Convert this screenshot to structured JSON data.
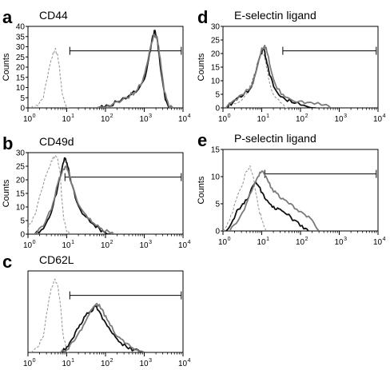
{
  "figure": {
    "background": "#ffffff",
    "colors": {
      "solid_dark": "#111111",
      "solid_gray": "#7a7a7a",
      "dashed_control": "#9a9a9a"
    }
  },
  "chart_data": [
    {
      "id": "a",
      "panel_letter": "a",
      "title": "CD44",
      "type": "line",
      "xscale": "log",
      "xlim": [
        1,
        10000
      ],
      "xticks": [
        {
          "base": "10",
          "exp": "0"
        },
        {
          "base": "10",
          "exp": "1"
        },
        {
          "base": "10",
          "exp": "2"
        },
        {
          "base": "10",
          "exp": "3"
        },
        {
          "base": "10",
          "exp": "4"
        }
      ],
      "ylabel": "Counts",
      "ylim": [
        0,
        40
      ],
      "yticks": [
        "0",
        "5",
        "10",
        "15",
        "20",
        "25",
        "30",
        "35",
        "40"
      ],
      "gate": [
        12,
        9000
      ],
      "series": [
        {
          "style": "dashed",
          "color": "#9a9a9a",
          "points": [
            [
              1.2,
              0
            ],
            [
              1.8,
              1
            ],
            [
              2.5,
              5
            ],
            [
              3.2,
              15
            ],
            [
              4,
              24
            ],
            [
              5,
              29
            ],
            [
              5.6,
              27
            ],
            [
              6.5,
              20
            ],
            [
              7.5,
              8
            ],
            [
              9,
              2
            ],
            [
              11,
              0
            ]
          ]
        },
        {
          "style": "solid",
          "color": "#111111",
          "points": [
            [
              70,
              0
            ],
            [
              120,
              1
            ],
            [
              200,
              3
            ],
            [
              400,
              6
            ],
            [
              700,
              9
            ],
            [
              1000,
              14
            ],
            [
              1300,
              24
            ],
            [
              1600,
              34
            ],
            [
              1900,
              38
            ],
            [
              2200,
              33
            ],
            [
              2700,
              18
            ],
            [
              3500,
              4
            ],
            [
              4500,
              0
            ]
          ]
        },
        {
          "style": "solid",
          "color": "#7a7a7a",
          "points": [
            [
              60,
              0
            ],
            [
              110,
              1
            ],
            [
              200,
              3
            ],
            [
              350,
              5
            ],
            [
              600,
              8
            ],
            [
              900,
              13
            ],
            [
              1200,
              22
            ],
            [
              1500,
              31
            ],
            [
              1800,
              36
            ],
            [
              2100,
              35
            ],
            [
              2600,
              24
            ],
            [
              3300,
              8
            ],
            [
              4300,
              1
            ],
            [
              5500,
              0
            ]
          ]
        }
      ]
    },
    {
      "id": "b",
      "panel_letter": "b",
      "title": "CD49d",
      "type": "line",
      "xscale": "log",
      "xlim": [
        1,
        10000
      ],
      "xticks": [
        {
          "base": "10",
          "exp": "0"
        },
        {
          "base": "10",
          "exp": "1"
        },
        {
          "base": "10",
          "exp": "2"
        },
        {
          "base": "10",
          "exp": "3"
        },
        {
          "base": "10",
          "exp": "4"
        }
      ],
      "ylabel": "Counts",
      "ylim": [
        0,
        30
      ],
      "yticks": [
        "0",
        "5",
        "10",
        "15",
        "20",
        "25",
        "30"
      ],
      "gate": [
        9,
        9000
      ],
      "series": [
        {
          "style": "dashed",
          "color": "#9a9a9a",
          "points": [
            [
              1,
              2
            ],
            [
              1.5,
              7
            ],
            [
              2,
              14
            ],
            [
              3,
              22
            ],
            [
              4,
              27
            ],
            [
              5,
              29
            ],
            [
              5.8,
              28
            ],
            [
              6.8,
              22
            ],
            [
              7.5,
              13
            ],
            [
              8.5,
              5
            ],
            [
              10,
              1
            ],
            [
              12,
              0
            ]
          ]
        },
        {
          "style": "solid",
          "color": "#111111",
          "points": [
            [
              1.5,
              0
            ],
            [
              2.5,
              2
            ],
            [
              4,
              8
            ],
            [
              6,
              18
            ],
            [
              8,
              26
            ],
            [
              9,
              28
            ],
            [
              10.5,
              25
            ],
            [
              13,
              19
            ],
            [
              18,
              12
            ],
            [
              28,
              7
            ],
            [
              45,
              4
            ],
            [
              70,
              2
            ],
            [
              100,
              0.5
            ],
            [
              140,
              0
            ]
          ]
        },
        {
          "style": "solid",
          "color": "#7a7a7a",
          "points": [
            [
              1.5,
              0
            ],
            [
              2.5,
              3
            ],
            [
              4,
              9
            ],
            [
              6,
              19
            ],
            [
              8,
              24
            ],
            [
              9.5,
              25
            ],
            [
              11,
              23
            ],
            [
              14,
              18
            ],
            [
              20,
              11
            ],
            [
              32,
              7
            ],
            [
              50,
              4
            ],
            [
              80,
              2
            ],
            [
              120,
              1
            ],
            [
              180,
              0
            ]
          ]
        }
      ]
    },
    {
      "id": "c",
      "panel_letter": "c",
      "title": "CD62L",
      "type": "line",
      "xscale": "log",
      "xlim": [
        1,
        10000
      ],
      "xticks": [
        {
          "base": "10",
          "exp": "0"
        },
        {
          "base": "10",
          "exp": "1"
        },
        {
          "base": "10",
          "exp": "2"
        },
        {
          "base": "10",
          "exp": "3"
        },
        {
          "base": "10",
          "exp": "4"
        }
      ],
      "ylabel": "",
      "ylim": [
        0,
        30
      ],
      "yticks": [],
      "gate": [
        12,
        9000
      ],
      "series": [
        {
          "style": "dashed",
          "color": "#9a9a9a",
          "points": [
            [
              1.2,
              0
            ],
            [
              1.8,
              2
            ],
            [
              2.5,
              6
            ],
            [
              3.2,
              16
            ],
            [
              4,
              24
            ],
            [
              5,
              27
            ],
            [
              5.8,
              25
            ],
            [
              6.8,
              18
            ],
            [
              8,
              7
            ],
            [
              9.5,
              2
            ],
            [
              11,
              0
            ]
          ]
        },
        {
          "style": "solid",
          "color": "#111111",
          "points": [
            [
              7,
              0
            ],
            [
              10,
              2
            ],
            [
              14,
              5
            ],
            [
              20,
              9
            ],
            [
              28,
              13
            ],
            [
              40,
              15
            ],
            [
              55,
              17
            ],
            [
              70,
              15
            ],
            [
              100,
              11
            ],
            [
              150,
              7
            ],
            [
              220,
              4
            ],
            [
              350,
              2
            ],
            [
              550,
              1
            ],
            [
              900,
              0
            ]
          ]
        },
        {
          "style": "solid",
          "color": "#7a7a7a",
          "points": [
            [
              7,
              0
            ],
            [
              10,
              1
            ],
            [
              15,
              4
            ],
            [
              22,
              8
            ],
            [
              32,
              12
            ],
            [
              45,
              16
            ],
            [
              60,
              18
            ],
            [
              80,
              16
            ],
            [
              110,
              12
            ],
            [
              160,
              8
            ],
            [
              250,
              5
            ],
            [
              400,
              3
            ],
            [
              650,
              1
            ],
            [
              1000,
              0
            ]
          ]
        }
      ]
    },
    {
      "id": "d",
      "panel_letter": "d",
      "title": "E-selectin ligand",
      "type": "line",
      "xscale": "log",
      "xlim": [
        1,
        10000
      ],
      "xticks": [
        {
          "base": "10",
          "exp": "0"
        },
        {
          "base": "10",
          "exp": "1"
        },
        {
          "base": "10",
          "exp": "2"
        },
        {
          "base": "10",
          "exp": "3"
        },
        {
          "base": "10",
          "exp": "4"
        }
      ],
      "ylabel": "Counts",
      "ylim": [
        0,
        30
      ],
      "yticks": [
        "0",
        "5",
        "10",
        "15",
        "20",
        "25",
        "30"
      ],
      "gate": [
        35,
        9000
      ],
      "series": [
        {
          "style": "dashed",
          "color": "#9a9a9a",
          "points": [
            [
              1.3,
              0
            ],
            [
              2.5,
              2
            ],
            [
              4,
              5
            ],
            [
              6,
              11
            ],
            [
              8,
              17
            ],
            [
              10,
              21
            ],
            [
              12,
              18
            ],
            [
              15,
              11
            ],
            [
              20,
              5
            ],
            [
              30,
              2
            ],
            [
              45,
              0
            ]
          ]
        },
        {
          "style": "solid",
          "color": "#111111",
          "points": [
            [
              1.2,
              0
            ],
            [
              1.8,
              2
            ],
            [
              3,
              4
            ],
            [
              5,
              7
            ],
            [
              7,
              13
            ],
            [
              9,
              19
            ],
            [
              11,
              22
            ],
            [
              13,
              18
            ],
            [
              16,
              12
            ],
            [
              22,
              7
            ],
            [
              35,
              4
            ],
            [
              60,
              2
            ],
            [
              120,
              1
            ],
            [
              250,
              0
            ]
          ]
        },
        {
          "style": "solid",
          "color": "#7a7a7a",
          "points": [
            [
              1.2,
              0
            ],
            [
              2,
              3
            ],
            [
              3.5,
              5
            ],
            [
              6,
              9
            ],
            [
              8,
              16
            ],
            [
              10,
              22
            ],
            [
              12,
              23
            ],
            [
              14,
              20
            ],
            [
              18,
              13
            ],
            [
              25,
              7
            ],
            [
              40,
              4
            ],
            [
              80,
              2
            ],
            [
              150,
              2
            ],
            [
              350,
              1
            ],
            [
              600,
              0
            ]
          ]
        }
      ]
    },
    {
      "id": "e",
      "panel_letter": "e",
      "title": "P-selectin ligand",
      "type": "line",
      "xscale": "log",
      "xlim": [
        1,
        10000
      ],
      "xticks": [
        {
          "base": "10",
          "exp": "0"
        },
        {
          "base": "10",
          "exp": "1"
        },
        {
          "base": "10",
          "exp": "2"
        },
        {
          "base": "10",
          "exp": "3"
        },
        {
          "base": "10",
          "exp": "4"
        }
      ],
      "ylabel": "Counts",
      "ylim": [
        0,
        15
      ],
      "yticks": [
        "0",
        "5",
        "10",
        "15"
      ],
      "gate": [
        12,
        9000
      ],
      "series": [
        {
          "style": "dashed",
          "color": "#9a9a9a",
          "points": [
            [
              1,
              0
            ],
            [
              1.5,
              2
            ],
            [
              2,
              5
            ],
            [
              3,
              8
            ],
            [
              4,
              11
            ],
            [
              5,
              12
            ],
            [
              6,
              10
            ],
            [
              7,
              7
            ],
            [
              8.5,
              4
            ],
            [
              10,
              2
            ],
            [
              13,
              0
            ]
          ]
        },
        {
          "style": "solid",
          "color": "#111111",
          "points": [
            [
              1.2,
              0
            ],
            [
              1.8,
              2
            ],
            [
              2.5,
              4
            ],
            [
              3.5,
              5
            ],
            [
              5,
              7
            ],
            [
              7,
              9
            ],
            [
              9,
              8
            ],
            [
              12,
              6
            ],
            [
              16,
              5
            ],
            [
              22,
              4
            ],
            [
              30,
              4
            ],
            [
              45,
              3
            ],
            [
              70,
              2
            ],
            [
              110,
              1
            ],
            [
              160,
              0
            ]
          ]
        },
        {
          "style": "solid",
          "color": "#7a7a7a",
          "points": [
            [
              1.5,
              0
            ],
            [
              2.5,
              2
            ],
            [
              4,
              5
            ],
            [
              6,
              8
            ],
            [
              8,
              10
            ],
            [
              10,
              11
            ],
            [
              13,
              10
            ],
            [
              17,
              8
            ],
            [
              24,
              7
            ],
            [
              35,
              6
            ],
            [
              50,
              5
            ],
            [
              80,
              4
            ],
            [
              130,
              3
            ],
            [
              200,
              2
            ],
            [
              300,
              0
            ]
          ]
        }
      ]
    }
  ]
}
